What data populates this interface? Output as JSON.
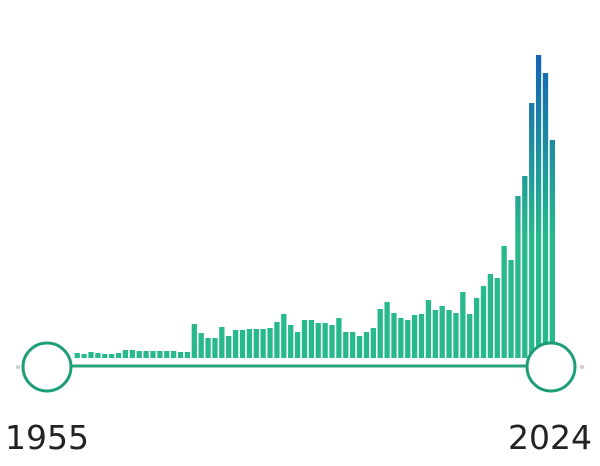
{
  "chart_data": {
    "type": "bar",
    "categories": [
      "1955",
      null,
      null,
      null,
      null,
      null,
      null,
      null,
      null,
      null,
      null,
      null,
      null,
      null,
      null,
      null,
      null,
      null,
      null,
      null,
      null,
      null,
      null,
      null,
      null,
      null,
      null,
      null,
      null,
      null,
      null,
      null,
      null,
      null,
      null,
      null,
      null,
      null,
      null,
      null,
      null,
      null,
      null,
      null,
      null,
      null,
      null,
      null,
      null,
      null,
      null,
      null,
      null,
      null,
      null,
      null,
      null,
      null,
      null,
      null,
      null,
      null,
      null,
      null,
      null,
      null,
      null,
      null,
      null,
      "2024"
    ],
    "values": [
      5,
      4,
      6,
      5,
      4,
      4,
      5,
      8,
      8,
      7,
      7,
      7,
      7,
      7,
      7,
      6,
      6,
      34,
      25,
      20,
      20,
      31,
      22,
      28,
      28,
      29,
      29,
      29,
      30,
      36,
      44,
      33,
      26,
      38,
      38,
      35,
      35,
      33,
      40,
      26,
      26,
      22,
      26,
      30,
      49,
      56,
      45,
      40,
      38,
      43,
      44,
      58,
      48,
      52,
      48,
      45,
      66,
      44,
      60,
      72,
      84,
      80,
      112,
      98,
      162,
      182,
      255,
      303,
      285,
      218
    ],
    "gradient": [
      "#1463b3",
      "#27b98c"
    ]
  }
}
